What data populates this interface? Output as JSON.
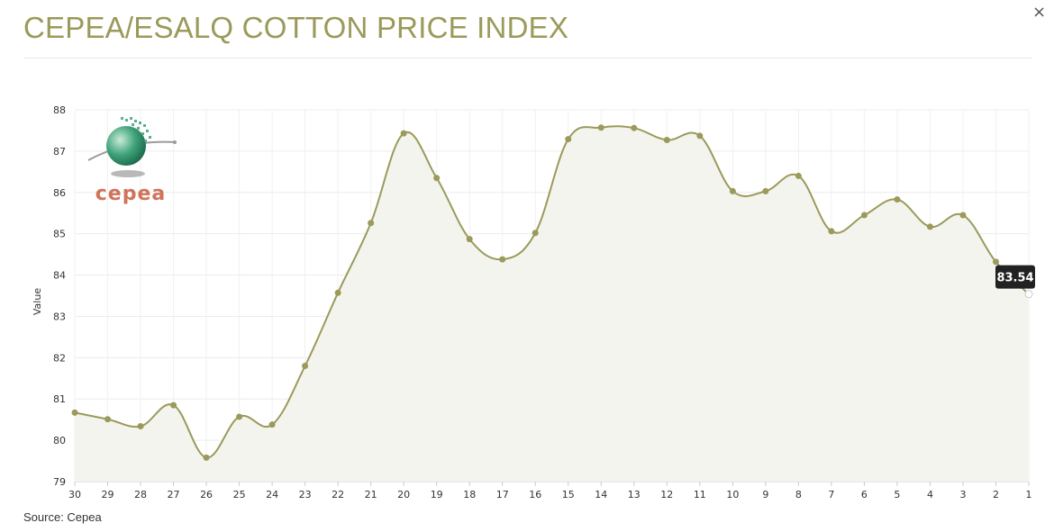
{
  "header": {
    "title": "CEPEA/ESALQ COTTON PRICE INDEX",
    "close_label": "×"
  },
  "footer": {
    "source": "Source: Cepea"
  },
  "logo": {
    "text": "CEPEA",
    "colors": {
      "sphere": "#3fa37a",
      "text": "#d0735a"
    }
  },
  "chart_data": {
    "type": "line",
    "title": "CEPEA/ESALQ COTTON PRICE INDEX",
    "xlabel": "",
    "ylabel": "Value",
    "ylim": [
      79,
      88
    ],
    "yticks": [
      79,
      80,
      81,
      82,
      83,
      84,
      85,
      86,
      87,
      88
    ],
    "grid": true,
    "legend": "none",
    "categories": [
      "30",
      "29",
      "28",
      "27",
      "26",
      "25",
      "24",
      "23",
      "22",
      "21",
      "20",
      "19",
      "18",
      "17",
      "16",
      "15",
      "14",
      "13",
      "12",
      "11",
      "10",
      "9",
      "8",
      "7",
      "6",
      "5",
      "4",
      "3",
      "2",
      "1"
    ],
    "series": [
      {
        "values": [
          80.67,
          80.51,
          80.34,
          80.85,
          79.58,
          80.57,
          80.38,
          81.8,
          83.57,
          85.26,
          87.43,
          86.35,
          84.87,
          84.38,
          85.02,
          87.29,
          87.57,
          87.56,
          87.27,
          87.37,
          86.03,
          86.03,
          86.4,
          85.06,
          85.45,
          85.83,
          85.17,
          85.45,
          84.32,
          83.54
        ],
        "color": "#9b9a5a",
        "fill": "#f4f4ef"
      }
    ],
    "tooltip": {
      "label": "83.54",
      "category": "1"
    }
  }
}
